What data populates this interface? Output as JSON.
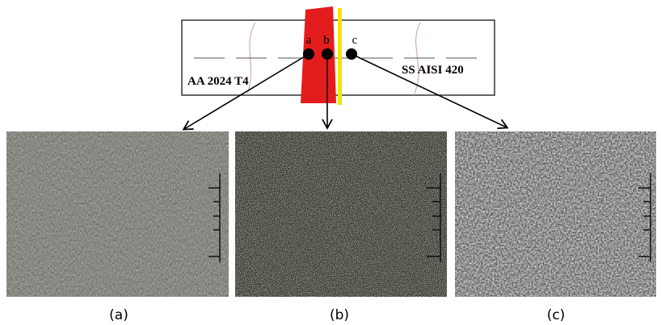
{
  "diagram": {
    "points": [
      {
        "label": "a"
      },
      {
        "label": "b"
      },
      {
        "label": "c"
      }
    ],
    "materials": {
      "left": "AA 2024 T4",
      "right": "SS AISI 420"
    },
    "panels": [
      {
        "caption": "(a)"
      },
      {
        "caption": "(b)"
      },
      {
        "caption": "(c)"
      }
    ]
  }
}
